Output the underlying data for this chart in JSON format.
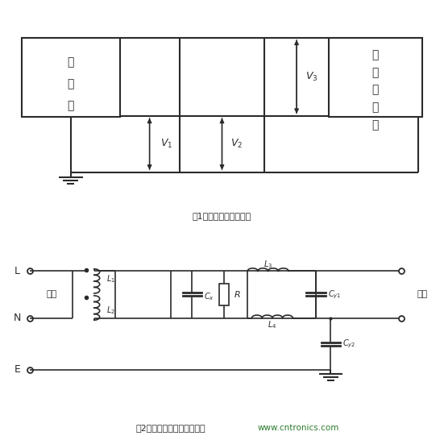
{
  "fig_width": 5.51,
  "fig_height": 5.46,
  "dpi": 100,
  "line_color": "#2b2b2b",
  "fig1_caption": "图1电磁干扰信号示意图",
  "fig2_caption": "图2电源滤波器的基本电路图",
  "fig2_caption2": "www.cntronics.com",
  "box1_label_lines": [
    "干",
    "扰",
    "源"
  ],
  "box2_label_lines": [
    "被",
    "干",
    "扰",
    "设",
    "备"
  ],
  "label_V1": "$V_1$",
  "label_V2": "$V_2$",
  "label_V3": "$V_3$",
  "label_L": "L",
  "label_N": "N",
  "label_E": "E",
  "label_input": "输入",
  "label_output": "输出",
  "label_L1": "$L_1$",
  "label_L2": "$L_2$",
  "label_L3": "$L_3$",
  "label_L4": "$L_4$",
  "label_Cx": "$C_x$",
  "label_R": "$R$",
  "label_Cy1": "$C_{y1}$",
  "label_Cy2": "$C_{y2}$"
}
